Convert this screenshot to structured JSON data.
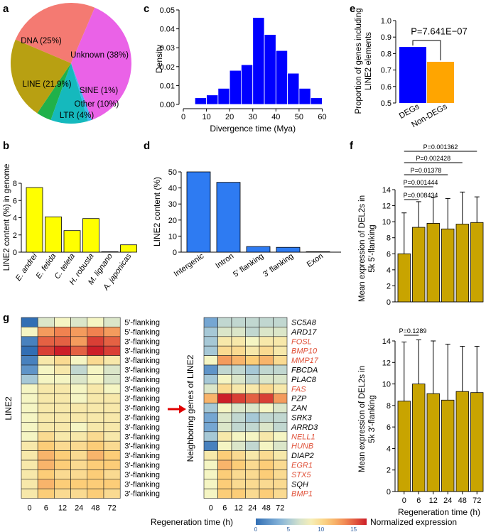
{
  "panel_letters": {
    "a": "a",
    "b": "b",
    "c": "c",
    "d": "d",
    "e": "e",
    "f": "f",
    "g": "g"
  },
  "colors": {
    "yellow": "#ffff00",
    "blue_bar": "#2e7bf2",
    "dark_blue": "#0000ff",
    "orange": "#ffa500",
    "olive": "#c8a400",
    "arrow": "#e00000",
    "gene_red": "#e0523a"
  },
  "chart_data": [
    {
      "id": "a",
      "type": "pie",
      "slices": [
        {
          "label": "DNA (25%)",
          "value": 25,
          "color": "#f47a72"
        },
        {
          "label": "Unknown (38%)",
          "value": 38,
          "color": "#ea62e7"
        },
        {
          "label": "SINE (1%)",
          "value": 1,
          "color": "#3fb7ef"
        },
        {
          "label": "Other (10%)",
          "value": 10,
          "color": "#15b9bd"
        },
        {
          "label": "LTR (4%)",
          "value": 4,
          "color": "#20b14a"
        },
        {
          "label": "LINE (21.9%)",
          "value": 21.9,
          "color": "#b8a012"
        }
      ]
    },
    {
      "id": "b",
      "type": "bar",
      "categories": [
        "E. andrei",
        "E. fetida",
        "C. teleta",
        "H. robusta",
        "M. lignano",
        "A. japonicas"
      ],
      "values": [
        7.5,
        4.1,
        2.5,
        3.9,
        0.05,
        0.85
      ],
      "ylabel": "LINE2 content (%) in genome",
      "ylim": [
        0,
        8
      ],
      "yticks": [
        0,
        2,
        4,
        6,
        8
      ]
    },
    {
      "id": "c",
      "type": "bar",
      "title": "",
      "bins": [
        [
          5,
          10
        ],
        [
          10,
          15
        ],
        [
          15,
          20
        ],
        [
          20,
          25
        ],
        [
          25,
          30
        ],
        [
          30,
          35
        ],
        [
          35,
          40
        ],
        [
          40,
          45
        ],
        [
          45,
          50
        ],
        [
          50,
          55
        ],
        [
          55,
          60
        ]
      ],
      "values": [
        0.0035,
        0.005,
        0.0085,
        0.018,
        0.021,
        0.046,
        0.037,
        0.0285,
        0.0165,
        0.0085,
        0.0035
      ],
      "xlabel": "Divergence time (Mya)",
      "ylabel": "Density",
      "xlim": [
        0,
        62
      ],
      "ylim": [
        0,
        0.05
      ],
      "xticks": [
        0,
        10,
        20,
        30,
        40,
        50,
        60
      ],
      "yticks": [
        0,
        0.01,
        0.02,
        0.03,
        0.04,
        0.05
      ],
      "ytick_labels": [
        "0.00",
        "0.01",
        "0.02",
        "0.03",
        "0.04",
        "0.05"
      ]
    },
    {
      "id": "d",
      "type": "bar",
      "categories": [
        "Intergenic",
        "Intron",
        "5′ flanking",
        "3′ flanking",
        "Exon"
      ],
      "values": [
        50,
        43.5,
        3.5,
        3,
        0.3
      ],
      "ylabel": "LINE2 content (%)",
      "ylim": [
        0,
        50
      ],
      "yticks": [
        0,
        10,
        20,
        30,
        40,
        50
      ]
    },
    {
      "id": "e",
      "type": "bar",
      "categories": [
        "DEGs",
        "Non-DEGs"
      ],
      "values": [
        0.84,
        0.75
      ],
      "ylabel": "Proportion of genes including LINE2 elements",
      "ylabel_lines": [
        "Proportion of genes including",
        "LINE2 elements"
      ],
      "ylim": [
        0.5,
        1.0
      ],
      "yticks": [
        0.5,
        0.6,
        0.7,
        0.8,
        0.9,
        1.0
      ],
      "ytick_labels": [
        "0.5",
        "0.6",
        "0.7",
        "0.8",
        "0.9",
        "1.0"
      ],
      "annotation": "P=7.641E−07"
    },
    {
      "id": "f_top",
      "type": "bar",
      "categories": [
        "0",
        "6",
        "12",
        "24",
        "48",
        "72"
      ],
      "values": [
        6.0,
        9.3,
        9.8,
        9.1,
        9.7,
        9.9
      ],
      "errors": [
        5.1,
        3.2,
        3.2,
        3.8,
        4.0,
        3.2
      ],
      "ylabel_lines": [
        "Mean expression of DEL2s in",
        "5k 5′-flanking"
      ],
      "ylim": [
        0,
        14
      ],
      "yticks": [
        0,
        2,
        4,
        6,
        8,
        10,
        12,
        14
      ],
      "pvalues": [
        {
          "label": "P=0.008434",
          "to": "6"
        },
        {
          "label": "P=0.001444",
          "to": "12"
        },
        {
          "label": "P=0.01378",
          "to": "24"
        },
        {
          "label": "P=0.002428",
          "to": "48"
        },
        {
          "label": "P=0.001362",
          "to": "72"
        }
      ]
    },
    {
      "id": "f_bottom",
      "type": "bar",
      "categories": [
        "0",
        "6",
        "12",
        "24",
        "48",
        "72"
      ],
      "values": [
        8.4,
        10.0,
        9.1,
        8.5,
        9.3,
        9.2
      ],
      "errors": [
        5.5,
        4.1,
        4.9,
        5.2,
        4.2,
        4.3
      ],
      "ylabel_lines": [
        "Mean expression of DEL2s in",
        "5k 3′-flanking"
      ],
      "xlabel": "Regeneration time (h)",
      "ylim": [
        0,
        14
      ],
      "yticks": [
        0,
        2,
        4,
        6,
        8,
        10,
        12,
        14
      ],
      "pvalues": [
        {
          "label": "P=0.1289",
          "to": "6"
        }
      ]
    },
    {
      "id": "g_left",
      "type": "heatmap",
      "ylabel": "LINE2",
      "columns": [
        "0",
        "6",
        "12",
        "24",
        "48",
        "72"
      ],
      "row_labels": [
        "5′-flanking",
        "5′-flanking",
        "3′-flanking",
        "3′-flanking",
        "3′-flanking",
        "3′-flanking",
        "3′-flanking",
        "3′-flanking",
        "3′-flanking",
        "3′-flanking",
        "3′-flanking",
        "3′-flanking",
        "3′-flanking",
        "3′-flanking",
        "3′-flanking",
        "3′-flanking",
        "3′-flanking",
        "3′-flanking",
        "3′-flanking"
      ],
      "values": [
        [
          0,
          7,
          8,
          7,
          8,
          7
        ],
        [
          8,
          13,
          14,
          13,
          14,
          13
        ],
        [
          1,
          15,
          15,
          13,
          16,
          15
        ],
        [
          0,
          16,
          17,
          15,
          17,
          16
        ],
        [
          1,
          9,
          10,
          8,
          10,
          9
        ],
        [
          2,
          8,
          9,
          6,
          8,
          7
        ],
        [
          5,
          8,
          8,
          7,
          8,
          7
        ],
        [
          8,
          9,
          9,
          8,
          9,
          8
        ],
        [
          8,
          9,
          9,
          8,
          9,
          9
        ],
        [
          8,
          9,
          9,
          9,
          9,
          9
        ],
        [
          8,
          9,
          9,
          9,
          9,
          9
        ],
        [
          8,
          9,
          9,
          8,
          9,
          9
        ],
        [
          8,
          10,
          9,
          9,
          10,
          9
        ],
        [
          9,
          11,
          10,
          10,
          11,
          10
        ],
        [
          9,
          12,
          11,
          10,
          12,
          11
        ],
        [
          9,
          12,
          11,
          10,
          11,
          11
        ],
        [
          9,
          11,
          10,
          10,
          11,
          10
        ],
        [
          9,
          12,
          11,
          11,
          11,
          11
        ],
        [
          9,
          11,
          10,
          10,
          11,
          10
        ]
      ]
    },
    {
      "id": "g_right",
      "type": "heatmap",
      "ylabel": "Neighboring genes of LINE2",
      "columns": [
        "0",
        "6",
        "12",
        "24",
        "48",
        "72"
      ],
      "genes": [
        {
          "name": "SC5A8",
          "red": false
        },
        {
          "name": "ARD17",
          "red": false
        },
        {
          "name": "FOSL",
          "red": true
        },
        {
          "name": "BMP10",
          "red": true
        },
        {
          "name": "MMP17",
          "red": true
        },
        {
          "name": "FBCDA",
          "red": false
        },
        {
          "name": "PLAC8",
          "red": false
        },
        {
          "name": "FAS",
          "red": true
        },
        {
          "name": "PZP",
          "red": false
        },
        {
          "name": "ZAN",
          "red": false
        },
        {
          "name": "SRK3",
          "red": false
        },
        {
          "name": "ARRD3",
          "red": false
        },
        {
          "name": "NELL1",
          "red": true
        },
        {
          "name": "HUNB",
          "red": true
        },
        {
          "name": "DIAP2",
          "red": false
        },
        {
          "name": "EGR1",
          "red": true
        },
        {
          "name": "STX5",
          "red": true
        },
        {
          "name": "SQH",
          "red": false
        },
        {
          "name": "BMP1",
          "red": true
        }
      ],
      "values": [
        [
          3,
          6,
          6,
          6,
          6,
          6
        ],
        [
          5,
          7,
          7,
          6,
          7,
          7
        ],
        [
          5,
          9,
          9,
          8,
          9,
          9
        ],
        [
          5,
          10,
          10,
          9,
          10,
          9
        ],
        [
          8,
          13,
          12,
          11,
          12,
          10
        ],
        [
          2,
          6,
          6,
          5,
          6,
          6
        ],
        [
          5,
          8,
          7,
          6,
          7,
          7
        ],
        [
          7,
          10,
          9,
          9,
          10,
          9
        ],
        [
          12,
          17,
          16,
          15,
          16,
          13
        ],
        [
          5,
          8,
          7,
          7,
          8,
          7
        ],
        [
          3,
          7,
          6,
          5,
          6,
          6
        ],
        [
          3,
          7,
          6,
          6,
          7,
          6
        ],
        [
          5,
          9,
          8,
          8,
          9,
          8
        ],
        [
          1,
          8,
          7,
          6,
          8,
          7
        ],
        [
          9,
          11,
          10,
          9,
          10,
          9
        ],
        [
          8,
          12,
          11,
          10,
          11,
          10
        ],
        [
          8,
          11,
          10,
          10,
          11,
          10
        ],
        [
          8,
          11,
          10,
          10,
          10,
          10
        ],
        [
          8,
          11,
          11,
          10,
          11,
          10
        ]
      ]
    }
  ],
  "heatmap_xlabel": "Regeneration time (h)",
  "colorbar": {
    "label": "Normalized expression",
    "min": 0,
    "max": 17,
    "ticks": [
      "0",
      "5",
      "10",
      "15"
    ],
    "tick_values": [
      0,
      5,
      10,
      15
    ]
  }
}
